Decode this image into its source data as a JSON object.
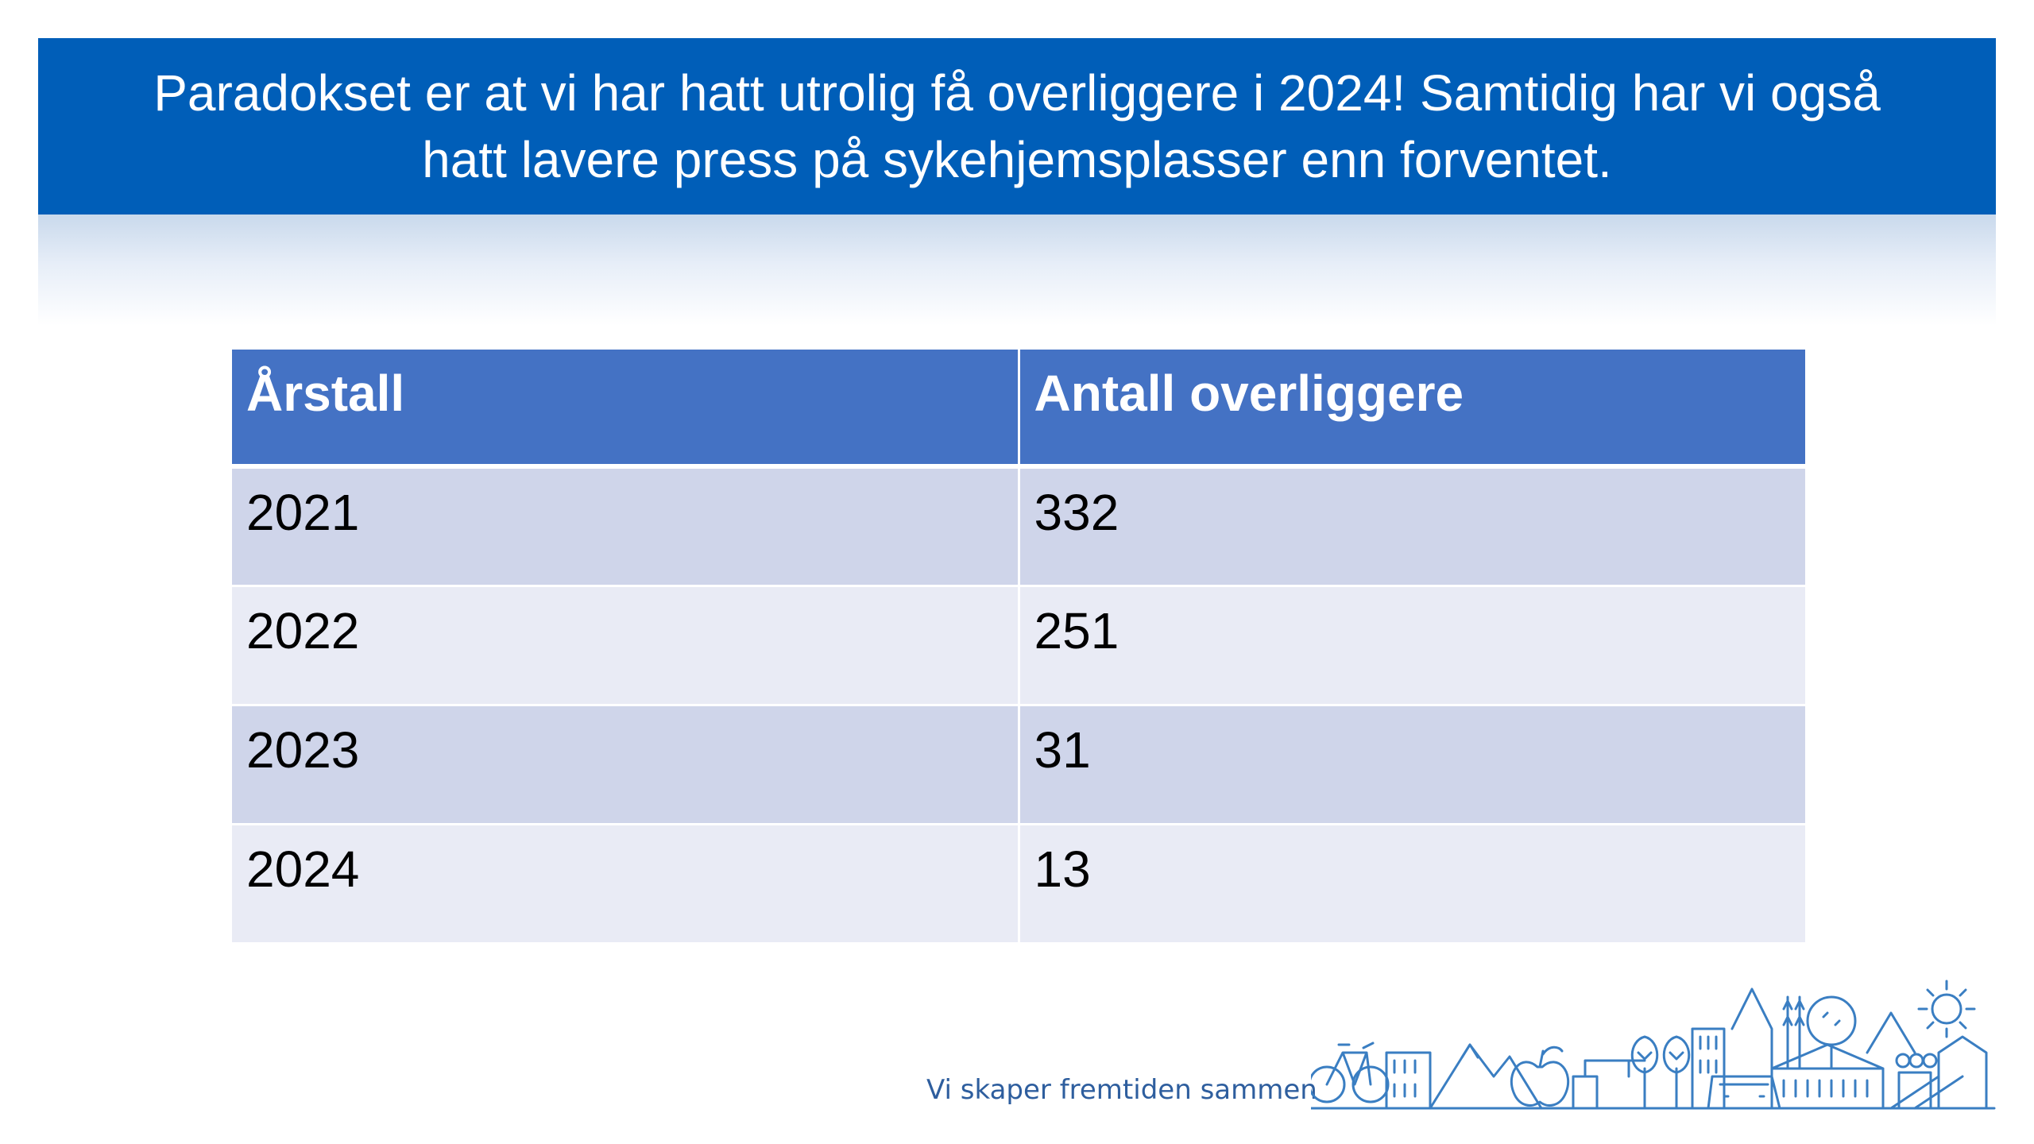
{
  "slide": {
    "title": "Paradokset er at vi har hatt utrolig få overliggere i 2024! Samtidig har vi også hatt lavere press på sykehjemsplasser enn forventet.",
    "colors": {
      "title_band": "#005EB8",
      "table_header": "#4472C4",
      "row_dark": "#CFD5EA",
      "row_light": "#E9EBF5",
      "logo_line": "#3A7EC2"
    }
  },
  "table": {
    "headers": [
      "Årstall",
      "Antall overliggere"
    ],
    "rows": [
      [
        "2021",
        "332"
      ],
      [
        "2022",
        "251"
      ],
      [
        "2023",
        "31"
      ],
      [
        "2024",
        "13"
      ]
    ]
  },
  "footer": {
    "tagline": "Vi skaper fremtiden sammen",
    "logo_icon": "city-skyline-line-art-icon"
  }
}
